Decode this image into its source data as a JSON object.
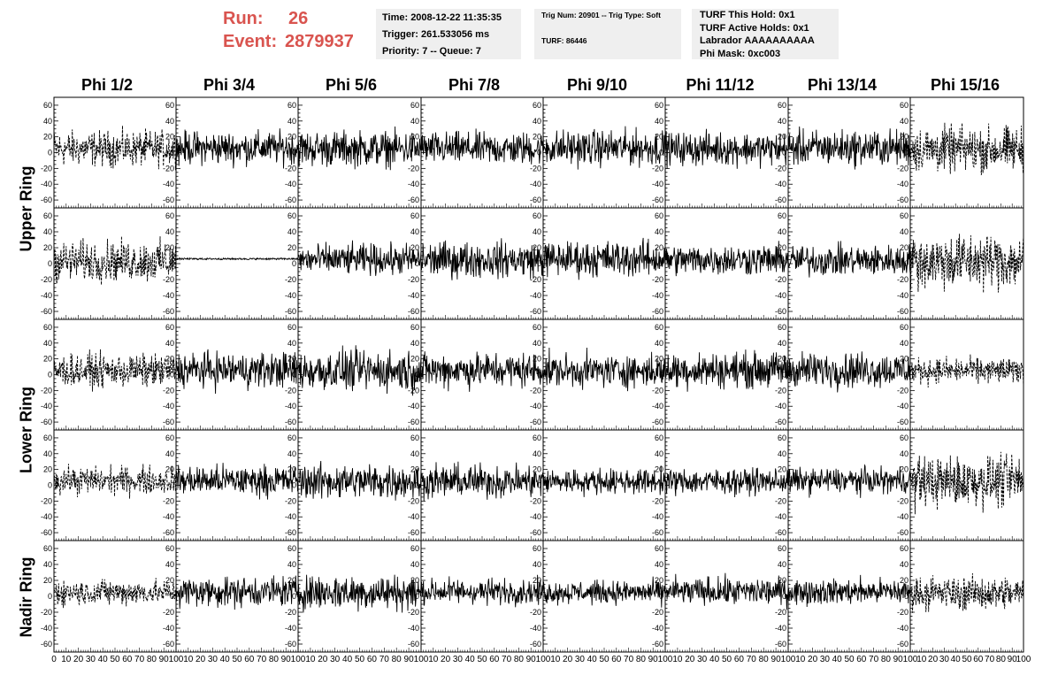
{
  "header": {
    "run_label": "Run:",
    "run_value": "26",
    "event_label": "Event:",
    "event_value": "2879937"
  },
  "info_time": {
    "time": "Time: 2008-12-22 11:35:35",
    "trigger": "Trigger: 261.533056 ms",
    "priority": "Priority: 7 -- Queue: 7"
  },
  "info_trig": {
    "trig": "Trig Num: 20901 -- Trig Type: Soft",
    "turf": "TURF: 86446"
  },
  "info_turf": {
    "hold": "TURF This Hold: 0x1",
    "active_holds": "TURF Active Holds: 0x1",
    "labrador": "Labrador AAAAAAAAAA",
    "phi_mask": "Phi Mask: 0xc003"
  },
  "columns": [
    "Phi 1/2",
    "Phi 3/4",
    "Phi 5/6",
    "Phi 7/8",
    "Phi 9/10",
    "Phi 11/12",
    "Phi 13/14",
    "Phi 15/16"
  ],
  "ring_labels": [
    {
      "label": "Upper Ring"
    },
    {
      "label": "Lower Ring"
    },
    {
      "label": "Nadir Ring"
    }
  ],
  "colors": {
    "trace": "#000000",
    "axis": "#000000",
    "highlight_text": "#d9544f",
    "info_bg": "#efefef"
  },
  "chart_data": {
    "type": "line",
    "rows": 5,
    "cols": 8,
    "xlim": [
      0,
      100
    ],
    "ylim": [
      -70,
      70
    ],
    "y_ticks": [
      -60,
      -40,
      -20,
      0,
      20,
      40,
      60
    ],
    "x_ticks": [
      0,
      10,
      20,
      30,
      40,
      50,
      60,
      70,
      80,
      90,
      100
    ],
    "x_tick_labels_first": [
      "0",
      "10",
      "20",
      "30",
      "40",
      "50",
      "60",
      "70",
      "80",
      "90",
      "100"
    ],
    "x_tick_labels": [
      "10",
      "20",
      "30",
      "40",
      "50",
      "60",
      "70",
      "80",
      "90",
      "100"
    ],
    "grid": false,
    "dashed_columns": [
      0,
      7
    ],
    "flat_panels": [
      [
        1,
        1
      ]
    ],
    "panel_amplitude": [
      [
        14,
        13,
        14,
        13,
        14,
        13,
        14,
        18
      ],
      [
        16,
        2,
        12,
        14,
        14,
        12,
        12,
        22
      ],
      [
        13,
        14,
        16,
        14,
        13,
        14,
        14,
        10
      ],
      [
        11,
        12,
        14,
        13,
        10,
        10,
        10,
        20
      ],
      [
        10,
        12,
        14,
        10,
        9,
        11,
        10,
        13
      ]
    ],
    "panel_offset": [
      [
        5,
        6,
        5,
        5,
        6,
        5,
        6,
        4
      ],
      [
        3,
        6,
        5,
        5,
        6,
        5,
        4,
        3
      ],
      [
        5,
        6,
        5,
        6,
        5,
        6,
        6,
        5
      ],
      [
        6,
        6,
        5,
        5,
        5,
        5,
        6,
        5
      ],
      [
        5,
        6,
        5,
        6,
        5,
        6,
        6,
        4
      ]
    ]
  }
}
